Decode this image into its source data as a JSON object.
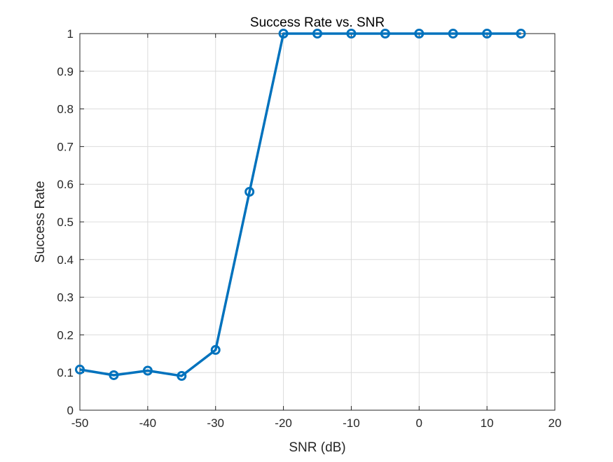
{
  "chart_data": {
    "type": "line",
    "title": "Success Rate vs. SNR",
    "xlabel": "SNR (dB)",
    "ylabel": "Success Rate",
    "xlim": [
      -50,
      20
    ],
    "ylim": [
      0,
      1
    ],
    "xticks": [
      -50,
      -40,
      -30,
      -20,
      -10,
      0,
      10,
      20
    ],
    "yticks": [
      0,
      0.1,
      0.2,
      0.3,
      0.4,
      0.5,
      0.6,
      0.7,
      0.8,
      0.9,
      1
    ],
    "grid": true,
    "series": [
      {
        "color": "#0072BD",
        "marker": "circle",
        "x": [
          -50,
          -45,
          -40,
          -35,
          -30,
          -25,
          -20,
          -15,
          -10,
          -5,
          0,
          5,
          10,
          15
        ],
        "values": [
          0.108,
          0.093,
          0.105,
          0.091,
          0.16,
          0.58,
          1,
          1,
          1,
          1,
          1,
          1,
          1,
          1
        ]
      }
    ]
  }
}
